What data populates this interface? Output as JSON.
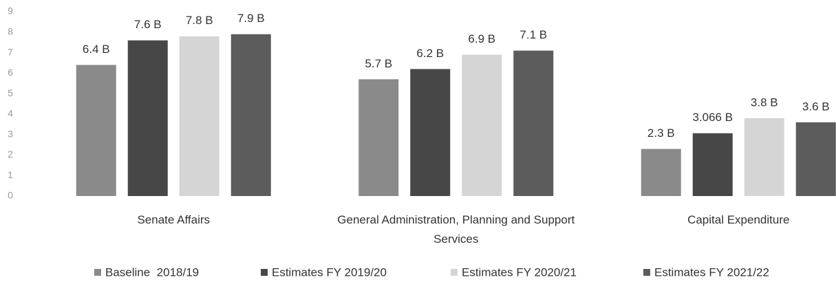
{
  "chart_data": {
    "type": "bar",
    "categories": [
      "Senate Affairs",
      "General Administration, Planning and Support Services",
      "Capital Expenditure"
    ],
    "series": [
      {
        "name": "Baseline  2018/19",
        "color": "#8a8a8a",
        "values": [
          6.4,
          5.7,
          2.3
        ],
        "value_labels": [
          "6.4 B",
          "5.7 B",
          "2.3 B"
        ]
      },
      {
        "name": "Estimates FY 2019/20",
        "color": "#474747",
        "values": [
          7.6,
          6.2,
          3.066
        ],
        "value_labels": [
          "7.6 B",
          "6.2 B",
          "3.066 B"
        ]
      },
      {
        "name": "Estimates FY 2020/21",
        "color": "#d5d5d5",
        "values": [
          7.8,
          6.9,
          3.8
        ],
        "value_labels": [
          "7.8 B",
          "6.9 B",
          "3.8 B"
        ]
      },
      {
        "name": "Estimates FY 2021/22",
        "color": "#5c5c5c",
        "values": [
          7.9,
          7.1,
          3.6
        ],
        "value_labels": [
          "7.9 B",
          "7.1 B",
          "3.6 B"
        ]
      }
    ],
    "ylim": [
      0,
      9
    ],
    "yticks": [
      0,
      1,
      2,
      3,
      4,
      5,
      6,
      7,
      8,
      9
    ],
    "grid": false
  }
}
